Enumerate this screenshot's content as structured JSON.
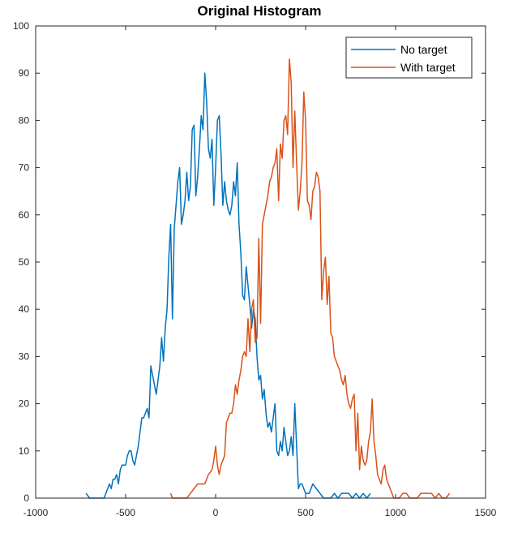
{
  "chart_data": {
    "type": "line",
    "title": "Original Histogram",
    "xlabel": "",
    "ylabel": "",
    "xlim": [
      -1000,
      1500
    ],
    "ylim": [
      0,
      100
    ],
    "xticks": [
      -1000,
      -500,
      0,
      500,
      1000,
      1500
    ],
    "xtick_labels": [
      "-1000",
      "-500",
      "0",
      "500",
      "1000",
      "1500"
    ],
    "yticks": [
      0,
      10,
      20,
      30,
      40,
      50,
      60,
      70,
      80,
      90,
      100
    ],
    "ytick_labels": [
      "0",
      "10",
      "20",
      "30",
      "40",
      "50",
      "60",
      "70",
      "80",
      "90",
      "100"
    ],
    "grid": false,
    "legend_position": "top-right",
    "series": [
      {
        "name": "No target",
        "color": "#0072BD",
        "points": [
          [
            -720,
            1
          ],
          [
            -700,
            0
          ],
          [
            -650,
            0
          ],
          [
            -620,
            0
          ],
          [
            -600,
            2
          ],
          [
            -590,
            3
          ],
          [
            -580,
            2
          ],
          [
            -570,
            4
          ],
          [
            -560,
            4
          ],
          [
            -550,
            5
          ],
          [
            -540,
            3
          ],
          [
            -530,
            6
          ],
          [
            -520,
            7
          ],
          [
            -500,
            7
          ],
          [
            -490,
            9
          ],
          [
            -480,
            10
          ],
          [
            -470,
            10
          ],
          [
            -460,
            8
          ],
          [
            -450,
            7
          ],
          [
            -440,
            9
          ],
          [
            -430,
            11
          ],
          [
            -420,
            14
          ],
          [
            -410,
            17
          ],
          [
            -400,
            17
          ],
          [
            -390,
            18
          ],
          [
            -380,
            19
          ],
          [
            -370,
            17
          ],
          [
            -360,
            28
          ],
          [
            -350,
            26
          ],
          [
            -340,
            24
          ],
          [
            -330,
            22
          ],
          [
            -320,
            25
          ],
          [
            -310,
            28
          ],
          [
            -300,
            34
          ],
          [
            -290,
            29
          ],
          [
            -280,
            36
          ],
          [
            -270,
            40
          ],
          [
            -260,
            51
          ],
          [
            -250,
            58
          ],
          [
            -240,
            38
          ],
          [
            -230,
            57
          ],
          [
            -220,
            62
          ],
          [
            -210,
            67
          ],
          [
            -200,
            70
          ],
          [
            -190,
            58
          ],
          [
            -180,
            60
          ],
          [
            -170,
            63
          ],
          [
            -160,
            69
          ],
          [
            -150,
            63
          ],
          [
            -140,
            66
          ],
          [
            -130,
            78
          ],
          [
            -120,
            79
          ],
          [
            -110,
            64
          ],
          [
            -100,
            68
          ],
          [
            -90,
            74
          ],
          [
            -80,
            81
          ],
          [
            -70,
            78
          ],
          [
            -60,
            90
          ],
          [
            -50,
            84
          ],
          [
            -40,
            74
          ],
          [
            -30,
            72
          ],
          [
            -20,
            76
          ],
          [
            -10,
            62
          ],
          [
            0,
            70
          ],
          [
            10,
            80
          ],
          [
            20,
            81
          ],
          [
            30,
            73
          ],
          [
            40,
            62
          ],
          [
            50,
            67
          ],
          [
            60,
            63
          ],
          [
            70,
            61
          ],
          [
            80,
            60
          ],
          [
            90,
            62
          ],
          [
            100,
            67
          ],
          [
            110,
            64
          ],
          [
            120,
            71
          ],
          [
            130,
            58
          ],
          [
            140,
            52
          ],
          [
            150,
            43
          ],
          [
            160,
            42
          ],
          [
            170,
            49
          ],
          [
            180,
            45
          ],
          [
            190,
            41
          ],
          [
            200,
            36
          ],
          [
            210,
            40
          ],
          [
            220,
            38
          ],
          [
            230,
            30
          ],
          [
            240,
            25
          ],
          [
            250,
            26
          ],
          [
            260,
            21
          ],
          [
            270,
            23
          ],
          [
            280,
            18
          ],
          [
            290,
            15
          ],
          [
            300,
            16
          ],
          [
            310,
            14
          ],
          [
            320,
            17
          ],
          [
            330,
            20
          ],
          [
            340,
            10
          ],
          [
            350,
            9
          ],
          [
            360,
            12
          ],
          [
            370,
            10
          ],
          [
            380,
            15
          ],
          [
            390,
            12
          ],
          [
            400,
            9
          ],
          [
            410,
            10
          ],
          [
            420,
            13
          ],
          [
            430,
            9
          ],
          [
            440,
            20
          ],
          [
            450,
            11
          ],
          [
            460,
            2
          ],
          [
            470,
            3
          ],
          [
            480,
            3
          ],
          [
            490,
            2
          ],
          [
            500,
            1
          ],
          [
            520,
            1
          ],
          [
            540,
            3
          ],
          [
            560,
            2
          ],
          [
            580,
            1
          ],
          [
            600,
            0
          ],
          [
            640,
            0
          ],
          [
            660,
            1
          ],
          [
            680,
            0
          ],
          [
            700,
            1
          ],
          [
            720,
            1
          ],
          [
            740,
            1
          ],
          [
            760,
            0
          ],
          [
            780,
            1
          ],
          [
            800,
            0
          ],
          [
            820,
            1
          ],
          [
            840,
            0
          ],
          [
            860,
            1
          ]
        ]
      },
      {
        "name": "With target",
        "color": "#D95319",
        "points": [
          [
            -250,
            1
          ],
          [
            -240,
            0
          ],
          [
            -180,
            0
          ],
          [
            -160,
            0
          ],
          [
            -140,
            1
          ],
          [
            -120,
            2
          ],
          [
            -100,
            3
          ],
          [
            -80,
            3
          ],
          [
            -60,
            3
          ],
          [
            -40,
            5
          ],
          [
            -20,
            6
          ],
          [
            -10,
            8
          ],
          [
            0,
            11
          ],
          [
            10,
            7
          ],
          [
            20,
            5
          ],
          [
            30,
            7
          ],
          [
            40,
            8
          ],
          [
            50,
            9
          ],
          [
            60,
            16
          ],
          [
            70,
            17
          ],
          [
            80,
            18
          ],
          [
            90,
            18
          ],
          [
            100,
            20
          ],
          [
            110,
            24
          ],
          [
            120,
            22
          ],
          [
            130,
            25
          ],
          [
            140,
            27
          ],
          [
            150,
            30
          ],
          [
            160,
            31
          ],
          [
            170,
            30
          ],
          [
            180,
            38
          ],
          [
            190,
            31
          ],
          [
            200,
            40
          ],
          [
            210,
            42
          ],
          [
            220,
            33
          ],
          [
            230,
            34
          ],
          [
            240,
            55
          ],
          [
            250,
            37
          ],
          [
            260,
            58
          ],
          [
            270,
            60
          ],
          [
            280,
            62
          ],
          [
            290,
            64
          ],
          [
            300,
            67
          ],
          [
            310,
            68
          ],
          [
            320,
            70
          ],
          [
            330,
            71
          ],
          [
            340,
            74
          ],
          [
            350,
            63
          ],
          [
            360,
            75
          ],
          [
            370,
            72
          ],
          [
            380,
            80
          ],
          [
            390,
            81
          ],
          [
            400,
            77
          ],
          [
            410,
            93
          ],
          [
            420,
            88
          ],
          [
            430,
            70
          ],
          [
            440,
            82
          ],
          [
            450,
            71
          ],
          [
            460,
            61
          ],
          [
            470,
            65
          ],
          [
            480,
            71
          ],
          [
            490,
            86
          ],
          [
            500,
            80
          ],
          [
            510,
            63
          ],
          [
            520,
            62
          ],
          [
            530,
            59
          ],
          [
            540,
            65
          ],
          [
            550,
            66
          ],
          [
            560,
            69
          ],
          [
            570,
            68
          ],
          [
            580,
            65
          ],
          [
            590,
            42
          ],
          [
            600,
            48
          ],
          [
            610,
            51
          ],
          [
            620,
            41
          ],
          [
            630,
            47
          ],
          [
            640,
            35
          ],
          [
            650,
            34
          ],
          [
            660,
            30
          ],
          [
            670,
            29
          ],
          [
            680,
            28
          ],
          [
            690,
            27
          ],
          [
            700,
            25
          ],
          [
            710,
            24
          ],
          [
            720,
            26
          ],
          [
            730,
            22
          ],
          [
            740,
            20
          ],
          [
            750,
            19
          ],
          [
            760,
            21
          ],
          [
            770,
            22
          ],
          [
            780,
            10
          ],
          [
            790,
            18
          ],
          [
            800,
            6
          ],
          [
            810,
            11
          ],
          [
            820,
            8
          ],
          [
            830,
            7
          ],
          [
            840,
            8
          ],
          [
            850,
            12
          ],
          [
            860,
            14
          ],
          [
            870,
            21
          ],
          [
            880,
            12
          ],
          [
            890,
            9
          ],
          [
            900,
            5
          ],
          [
            910,
            4
          ],
          [
            920,
            3
          ],
          [
            930,
            6
          ],
          [
            940,
            7
          ],
          [
            950,
            4
          ],
          [
            960,
            3
          ],
          [
            970,
            2
          ],
          [
            980,
            1
          ],
          [
            990,
            0
          ],
          [
            1020,
            0
          ],
          [
            1040,
            1
          ],
          [
            1060,
            1
          ],
          [
            1080,
            0
          ],
          [
            1120,
            0
          ],
          [
            1140,
            1
          ],
          [
            1160,
            1
          ],
          [
            1180,
            1
          ],
          [
            1200,
            1
          ],
          [
            1220,
            0
          ],
          [
            1240,
            1
          ],
          [
            1260,
            0
          ],
          [
            1280,
            0
          ],
          [
            1300,
            1
          ]
        ]
      }
    ]
  }
}
